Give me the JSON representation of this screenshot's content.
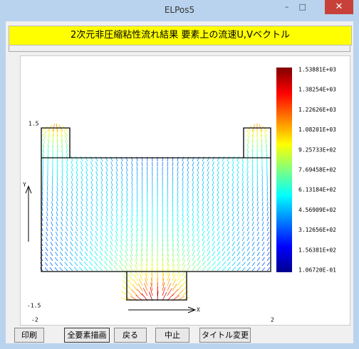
{
  "window": {
    "title": "ELPos5"
  },
  "banner": "2次元非圧縮粘性流れ結果 要素上の流速U,Vベクトル",
  "plot": {
    "colorbar_labels": [
      "1.53881E+03",
      "1.38254E+03",
      "1.22626E+03",
      "1.08201E+03",
      "9.25733E+02",
      "7.69458E+02",
      "6.13184E+02",
      "4.56909E+02",
      "3.12656E+02",
      "1.56381E+02",
      "1.06720E-01"
    ],
    "y_max_label": "1.5",
    "y_min_label": "-1.5",
    "x_min_label": "-2",
    "x_max_label": "2",
    "y_axis_label": "Y",
    "x_axis_label": "X"
  },
  "buttons": [
    "印刷",
    "全要素描画",
    "戻る",
    "中止",
    "タイトル変更"
  ]
}
